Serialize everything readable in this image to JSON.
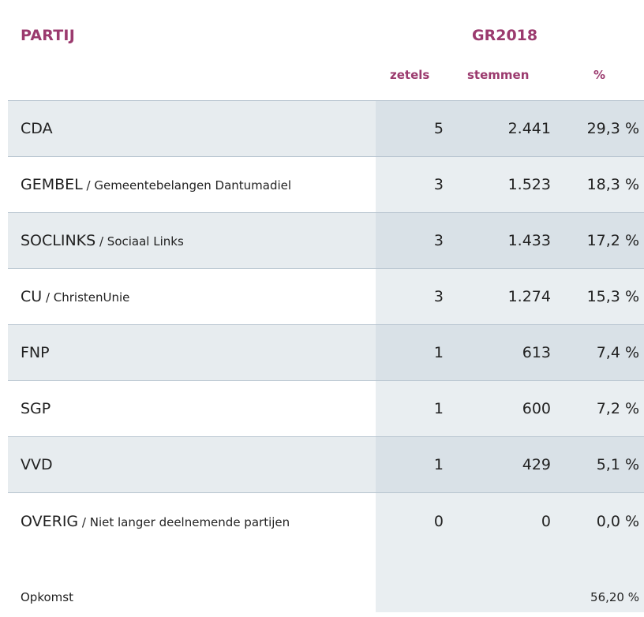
{
  "header": {
    "party_label": "PARTIJ",
    "election_label": "GR2018",
    "col_seats": "zetels",
    "col_votes": "stemmen",
    "col_pct": "%"
  },
  "rows": [
    {
      "abbr": "CDA",
      "full": "",
      "seats": "5",
      "votes": "2.441",
      "pct": "29,3 %"
    },
    {
      "abbr": "GEMBEL",
      "full": " / Gemeentebelangen Dantumadiel",
      "seats": "3",
      "votes": "1.523",
      "pct": "18,3 %"
    },
    {
      "abbr": "SOCLINKS",
      "full": " / Sociaal Links",
      "seats": "3",
      "votes": "1.433",
      "pct": "17,2 %"
    },
    {
      "abbr": "CU",
      "full": " / ChristenUnie",
      "seats": "3",
      "votes": "1.274",
      "pct": "15,3 %"
    },
    {
      "abbr": "FNP",
      "full": "",
      "seats": "1",
      "votes": "613",
      "pct": "7,4 %"
    },
    {
      "abbr": "SGP",
      "full": "",
      "seats": "1",
      "votes": "600",
      "pct": "7,2 %"
    },
    {
      "abbr": "VVD",
      "full": "",
      "seats": "1",
      "votes": "429",
      "pct": "5,1 %"
    },
    {
      "abbr": "OVERIG",
      "full": " / Niet langer deelnemende partijen",
      "seats": "0",
      "votes": "0",
      "pct": "0,0 %"
    }
  ],
  "footer": {
    "turnout_label": "Opkomst",
    "turnout_value": "56,20 %"
  },
  "colors": {
    "accent": "#9b3a6e",
    "row_alt": "#e7ecef",
    "shade_alt": "#d9e1e7",
    "shade_plain": "#e9eef1",
    "divider": "#b7c4cf"
  }
}
